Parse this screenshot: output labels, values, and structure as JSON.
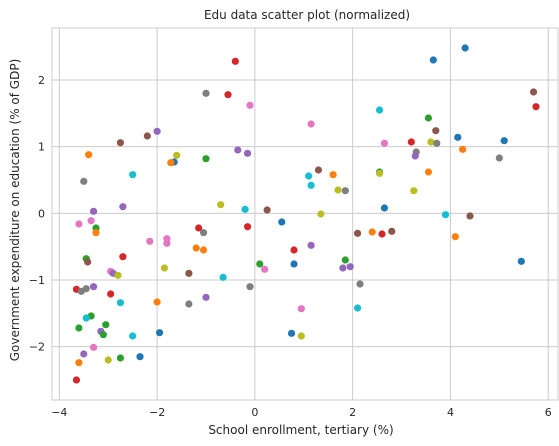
{
  "chart_data": {
    "type": "scatter",
    "title": "Edu data scatter plot (normalized)",
    "xlabel": "School enrollment, tertiary (%)",
    "ylabel": "Government expenditure on education (% of GDP)",
    "xlim": [
      -4.15,
      6.2
    ],
    "ylim": [
      -2.8,
      2.78
    ],
    "xticks": [
      -4,
      -2,
      0,
      2,
      4,
      6
    ],
    "yticks": [
      -2,
      -1,
      0,
      1,
      2
    ],
    "grid": true,
    "palette": [
      "#1f77b4",
      "#ff7f0e",
      "#2ca02c",
      "#d62728",
      "#9467bd",
      "#8c564b",
      "#e377c2",
      "#7f7f7f",
      "#bcbd22",
      "#17becf"
    ],
    "points": [
      {
        "x": 4.3,
        "y": 2.48,
        "color": "#1f77b4"
      },
      {
        "x": -0.4,
        "y": 2.28,
        "color": "#d62728"
      },
      {
        "x": 3.65,
        "y": 2.3,
        "color": "#1f77b4"
      },
      {
        "x": -0.55,
        "y": 1.78,
        "color": "#d62728"
      },
      {
        "x": -1.0,
        "y": 1.8,
        "color": "#7f7f7f"
      },
      {
        "x": -0.1,
        "y": 1.62,
        "color": "#e377c2"
      },
      {
        "x": 5.7,
        "y": 1.82,
        "color": "#8c564b"
      },
      {
        "x": 5.75,
        "y": 1.6,
        "color": "#d62728"
      },
      {
        "x": 2.55,
        "y": 1.55,
        "color": "#17becf"
      },
      {
        "x": 3.55,
        "y": 1.43,
        "color": "#2ca02c"
      },
      {
        "x": 1.15,
        "y": 1.34,
        "color": "#e377c2"
      },
      {
        "x": -2.2,
        "y": 1.16,
        "color": "#8c564b"
      },
      {
        "x": -2.0,
        "y": 1.23,
        "color": "#9467bd"
      },
      {
        "x": -2.75,
        "y": 1.06,
        "color": "#8c564b"
      },
      {
        "x": 3.7,
        "y": 1.24,
        "color": "#8c564b"
      },
      {
        "x": 4.15,
        "y": 1.14,
        "color": "#1f77b4"
      },
      {
        "x": 5.1,
        "y": 1.09,
        "color": "#1f77b4"
      },
      {
        "x": 3.2,
        "y": 1.07,
        "color": "#d62728"
      },
      {
        "x": 3.6,
        "y": 1.07,
        "color": "#bcbd22"
      },
      {
        "x": 3.72,
        "y": 1.05,
        "color": "#7f7f7f"
      },
      {
        "x": 2.65,
        "y": 1.05,
        "color": "#e377c2"
      },
      {
        "x": -3.4,
        "y": 0.88,
        "color": "#ff7f0e"
      },
      {
        "x": -0.35,
        "y": 0.95,
        "color": "#9467bd"
      },
      {
        "x": -0.15,
        "y": 0.9,
        "color": "#9467bd"
      },
      {
        "x": 3.3,
        "y": 0.92,
        "color": "#7f7f7f"
      },
      {
        "x": 4.25,
        "y": 0.96,
        "color": "#ff7f0e"
      },
      {
        "x": 3.28,
        "y": 0.86,
        "color": "#9467bd"
      },
      {
        "x": -1.6,
        "y": 0.87,
        "color": "#bcbd22"
      },
      {
        "x": -1.65,
        "y": 0.77,
        "color": "#1f77b4"
      },
      {
        "x": -1.72,
        "y": 0.76,
        "color": "#ff7f0e"
      },
      {
        "x": -1.0,
        "y": 0.82,
        "color": "#2ca02c"
      },
      {
        "x": 5.0,
        "y": 0.83,
        "color": "#7f7f7f"
      },
      {
        "x": 1.3,
        "y": 0.65,
        "color": "#8c564b"
      },
      {
        "x": 2.55,
        "y": 0.62,
        "color": "#2ca02c"
      },
      {
        "x": 2.55,
        "y": 0.6,
        "color": "#bcbd22"
      },
      {
        "x": 3.55,
        "y": 0.62,
        "color": "#ff7f0e"
      },
      {
        "x": 1.6,
        "y": 0.58,
        "color": "#ff7f0e"
      },
      {
        "x": 1.1,
        "y": 0.56,
        "color": "#17becf"
      },
      {
        "x": -2.5,
        "y": 0.58,
        "color": "#17becf"
      },
      {
        "x": -3.5,
        "y": 0.48,
        "color": "#7f7f7f"
      },
      {
        "x": 1.15,
        "y": 0.42,
        "color": "#17becf"
      },
      {
        "x": 1.7,
        "y": 0.35,
        "color": "#bcbd22"
      },
      {
        "x": 1.85,
        "y": 0.34,
        "color": "#7f7f7f"
      },
      {
        "x": 3.25,
        "y": 0.34,
        "color": "#bcbd22"
      },
      {
        "x": -0.7,
        "y": 0.13,
        "color": "#bcbd22"
      },
      {
        "x": -2.7,
        "y": 0.1,
        "color": "#9467bd"
      },
      {
        "x": 2.65,
        "y": 0.08,
        "color": "#1f77b4"
      },
      {
        "x": -0.2,
        "y": 0.06,
        "color": "#17becf"
      },
      {
        "x": 0.25,
        "y": 0.05,
        "color": "#8c564b"
      },
      {
        "x": -3.3,
        "y": 0.03,
        "color": "#9467bd"
      },
      {
        "x": 1.35,
        "y": -0.01,
        "color": "#bcbd22"
      },
      {
        "x": 3.9,
        "y": -0.02,
        "color": "#17becf"
      },
      {
        "x": 4.4,
        "y": -0.04,
        "color": "#8c564b"
      },
      {
        "x": -3.35,
        "y": -0.11,
        "color": "#e377c2"
      },
      {
        "x": 0.55,
        "y": -0.13,
        "color": "#1f77b4"
      },
      {
        "x": -3.6,
        "y": -0.16,
        "color": "#e377c2"
      },
      {
        "x": -0.15,
        "y": -0.2,
        "color": "#d62728"
      },
      {
        "x": -1.15,
        "y": -0.22,
        "color": "#d62728"
      },
      {
        "x": -3.25,
        "y": -0.22,
        "color": "#2ca02c"
      },
      {
        "x": -1.05,
        "y": -0.29,
        "color": "#7f7f7f"
      },
      {
        "x": -3.25,
        "y": -0.29,
        "color": "#ff7f0e"
      },
      {
        "x": 2.4,
        "y": -0.28,
        "color": "#ff7f0e"
      },
      {
        "x": 2.8,
        "y": -0.27,
        "color": "#8c564b"
      },
      {
        "x": 2.1,
        "y": -0.3,
        "color": "#8c564b"
      },
      {
        "x": 2.6,
        "y": -0.31,
        "color": "#d62728"
      },
      {
        "x": 4.1,
        "y": -0.35,
        "color": "#ff7f0e"
      },
      {
        "x": -1.8,
        "y": -0.38,
        "color": "#e377c2"
      },
      {
        "x": -2.15,
        "y": -0.42,
        "color": "#e377c2"
      },
      {
        "x": -1.8,
        "y": -0.45,
        "color": "#e377c2"
      },
      {
        "x": 1.15,
        "y": -0.48,
        "color": "#9467bd"
      },
      {
        "x": -1.2,
        "y": -0.52,
        "color": "#ff7f0e"
      },
      {
        "x": -1.05,
        "y": -0.55,
        "color": "#ff7f0e"
      },
      {
        "x": 0.8,
        "y": -0.55,
        "color": "#d62728"
      },
      {
        "x": -2.7,
        "y": -0.65,
        "color": "#d62728"
      },
      {
        "x": -3.45,
        "y": -0.68,
        "color": "#2ca02c"
      },
      {
        "x": -3.42,
        "y": -0.73,
        "color": "#8c564b"
      },
      {
        "x": 5.45,
        "y": -0.72,
        "color": "#1f77b4"
      },
      {
        "x": 0.1,
        "y": -0.76,
        "color": "#2ca02c"
      },
      {
        "x": 1.85,
        "y": -0.7,
        "color": "#2ca02c"
      },
      {
        "x": 0.8,
        "y": -0.76,
        "color": "#1f77b4"
      },
      {
        "x": 1.95,
        "y": -0.8,
        "color": "#9467bd"
      },
      {
        "x": 1.8,
        "y": -0.82,
        "color": "#9467bd"
      },
      {
        "x": -1.85,
        "y": -0.82,
        "color": "#bcbd22"
      },
      {
        "x": 0.2,
        "y": -0.84,
        "color": "#e377c2"
      },
      {
        "x": -2.95,
        "y": -0.87,
        "color": "#e377c2"
      },
      {
        "x": -2.9,
        "y": -0.9,
        "color": "#9467bd"
      },
      {
        "x": -1.35,
        "y": -0.9,
        "color": "#8c564b"
      },
      {
        "x": -2.8,
        "y": -0.93,
        "color": "#bcbd22"
      },
      {
        "x": -0.65,
        "y": -0.96,
        "color": "#17becf"
      },
      {
        "x": 2.15,
        "y": -1.06,
        "color": "#7f7f7f"
      },
      {
        "x": -0.1,
        "y": -1.1,
        "color": "#7f7f7f"
      },
      {
        "x": -3.3,
        "y": -1.1,
        "color": "#9467bd"
      },
      {
        "x": -3.65,
        "y": -1.14,
        "color": "#d62728"
      },
      {
        "x": -3.45,
        "y": -1.13,
        "color": "#7f7f7f"
      },
      {
        "x": -3.55,
        "y": -1.17,
        "color": "#7f7f7f"
      },
      {
        "x": -2.95,
        "y": -1.21,
        "color": "#d62728"
      },
      {
        "x": -1.0,
        "y": -1.26,
        "color": "#9467bd"
      },
      {
        "x": -2.0,
        "y": -1.33,
        "color": "#ff7f0e"
      },
      {
        "x": -2.75,
        "y": -1.34,
        "color": "#17becf"
      },
      {
        "x": -1.35,
        "y": -1.36,
        "color": "#7f7f7f"
      },
      {
        "x": 2.1,
        "y": -1.42,
        "color": "#17becf"
      },
      {
        "x": 0.95,
        "y": -1.43,
        "color": "#e377c2"
      },
      {
        "x": -3.35,
        "y": -1.54,
        "color": "#2ca02c"
      },
      {
        "x": -3.45,
        "y": -1.57,
        "color": "#17becf"
      },
      {
        "x": -3.05,
        "y": -1.67,
        "color": "#2ca02c"
      },
      {
        "x": -3.6,
        "y": -1.72,
        "color": "#2ca02c"
      },
      {
        "x": -3.15,
        "y": -1.77,
        "color": "#9467bd"
      },
      {
        "x": -1.95,
        "y": -1.79,
        "color": "#1f77b4"
      },
      {
        "x": 0.75,
        "y": -1.8,
        "color": "#1f77b4"
      },
      {
        "x": -3.1,
        "y": -1.82,
        "color": "#2ca02c"
      },
      {
        "x": -2.5,
        "y": -1.84,
        "color": "#17becf"
      },
      {
        "x": 0.95,
        "y": -1.84,
        "color": "#bcbd22"
      },
      {
        "x": -3.3,
        "y": -2.01,
        "color": "#e377c2"
      },
      {
        "x": -3.5,
        "y": -2.11,
        "color": "#9467bd"
      },
      {
        "x": -2.35,
        "y": -2.15,
        "color": "#1f77b4"
      },
      {
        "x": -2.75,
        "y": -2.17,
        "color": "#2ca02c"
      },
      {
        "x": -3.0,
        "y": -2.2,
        "color": "#bcbd22"
      },
      {
        "x": -3.6,
        "y": -2.24,
        "color": "#ff7f0e"
      },
      {
        "x": -3.65,
        "y": -2.5,
        "color": "#d62728"
      }
    ]
  }
}
